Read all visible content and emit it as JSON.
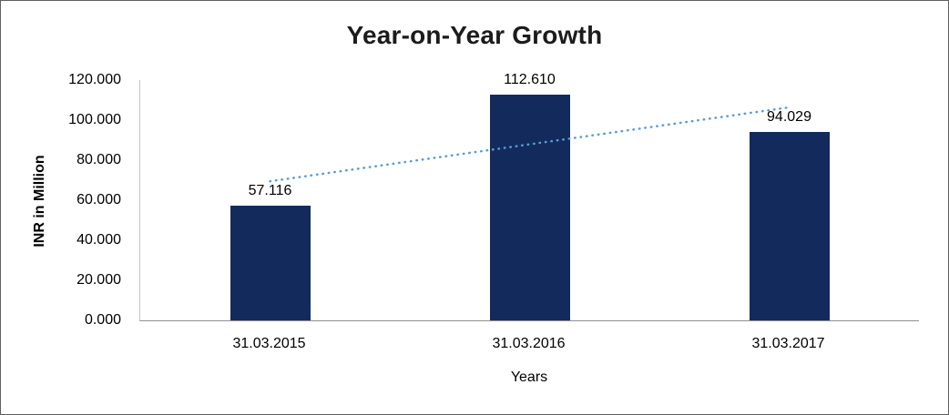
{
  "chart_data": {
    "type": "bar",
    "title": "Year-on-Year Growth",
    "xlabel": "Years",
    "ylabel": "INR in Million",
    "categories": [
      "31.03.2015",
      "31.03.2016",
      "31.03.2017"
    ],
    "values": [
      57.116,
      112.61,
      94.029
    ],
    "value_labels": [
      "57.116",
      "112.610",
      "94.029"
    ],
    "ylim": [
      0,
      120
    ],
    "ytick_step": 20,
    "ytick_labels": [
      "0.000",
      "20.000",
      "40.000",
      "60.000",
      "80.000",
      "100.000",
      "120.000"
    ],
    "grid": false,
    "legend": "none",
    "bar_color": "#132A5C",
    "trendline": {
      "type": "linear",
      "style": "dotted",
      "color": "#5B9BD5"
    }
  }
}
